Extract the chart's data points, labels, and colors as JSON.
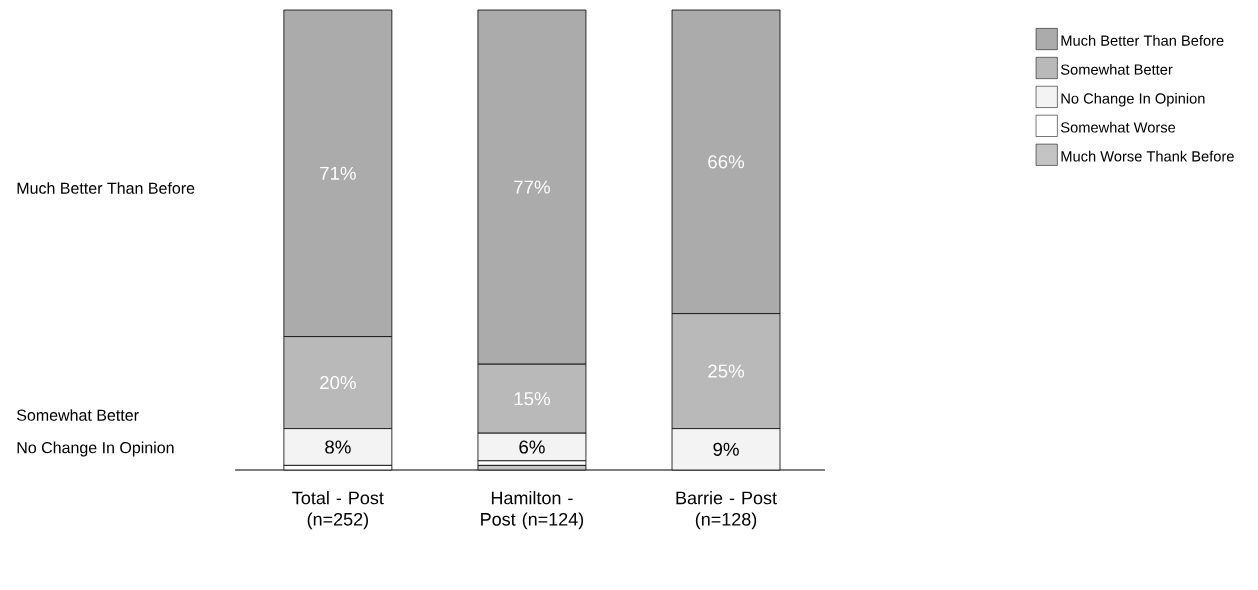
{
  "chart_data": {
    "type": "bar",
    "stacked": true,
    "legend": "right",
    "categories": [
      "Total - Post (n=252)",
      "Hamilton - Post (n=124)",
      "Barrie - Post (n=128)"
    ],
    "series": [
      {
        "name": "Much Worse Thank Before",
        "color": "#c4c4c4",
        "values": [
          0,
          1,
          0
        ],
        "value_labels": [
          null,
          null,
          null
        ]
      },
      {
        "name": "Somewhat Worse",
        "color": "#ffffff",
        "values": [
          1,
          1,
          0
        ],
        "value_labels": [
          null,
          null,
          null
        ]
      },
      {
        "name": "No Change In Opinion",
        "color": "#f3f3f3",
        "values": [
          8,
          6,
          9
        ],
        "value_labels": [
          "8%",
          "6%",
          "9%"
        ]
      },
      {
        "name": "Somewhat Better",
        "color": "#b9b9b9",
        "values": [
          20,
          15,
          25
        ],
        "value_labels": [
          "20%",
          "15%",
          "25%"
        ]
      },
      {
        "name": "Much Better Than Before",
        "color": "#ababab",
        "values": [
          71,
          77,
          66
        ],
        "value_labels": [
          "71%",
          "77%",
          "66%"
        ]
      }
    ],
    "annotations": [
      "Much Better Than Before",
      "Somewhat Better",
      "No Change In Opinion"
    ]
  }
}
